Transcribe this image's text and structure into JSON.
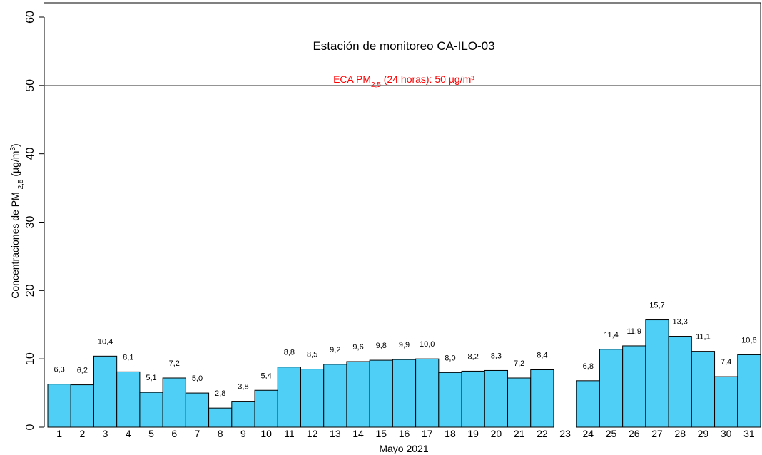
{
  "chart_data": {
    "type": "bar",
    "title": "Estación de monitoreo  CA-ILO-03",
    "x_label": "Mayo 2021",
    "y_label": {
      "parts": [
        "Concentraciones de PM ",
        "2,5",
        " (µg/m",
        "3",
        ")"
      ]
    },
    "reference_line": {
      "value": 50,
      "label_parts": [
        "ECA PM",
        "2,5",
        " (24 horas): 50 µg/m³"
      ],
      "color": "#ff0000"
    },
    "categories": [
      "1",
      "2",
      "3",
      "4",
      "5",
      "6",
      "7",
      "8",
      "9",
      "10",
      "11",
      "12",
      "13",
      "14",
      "15",
      "16",
      "17",
      "18",
      "19",
      "20",
      "21",
      "22",
      "23",
      "24",
      "25",
      "26",
      "27",
      "28",
      "29",
      "30",
      "31"
    ],
    "values": [
      6.3,
      6.2,
      10.4,
      8.1,
      5.1,
      7.2,
      5.0,
      2.8,
      3.8,
      5.4,
      8.8,
      8.5,
      9.2,
      9.6,
      9.8,
      9.9,
      10.0,
      8.0,
      8.2,
      8.3,
      7.2,
      8.4,
      null,
      6.8,
      11.4,
      11.9,
      15.7,
      13.3,
      11.1,
      7.4,
      10.6
    ],
    "value_labels": [
      "6,3",
      "6,2",
      "10,4",
      "8,1",
      "5,1",
      "7,2",
      "5,0",
      "2,8",
      "3,8",
      "5,4",
      "8,8",
      "8,5",
      "9,2",
      "9,6",
      "9,8",
      "9,9",
      "10,0",
      "8,0",
      "8,2",
      "8,3",
      "7,2",
      "8,4",
      null,
      "6,8",
      "11,4",
      "11,9",
      "15,7",
      "13,3",
      "11,1",
      "7,4",
      "10,6"
    ],
    "color": "#4fcff5",
    "ylim": [
      0,
      60
    ],
    "yticks": [
      0,
      10,
      20,
      30,
      40,
      50,
      60
    ]
  }
}
